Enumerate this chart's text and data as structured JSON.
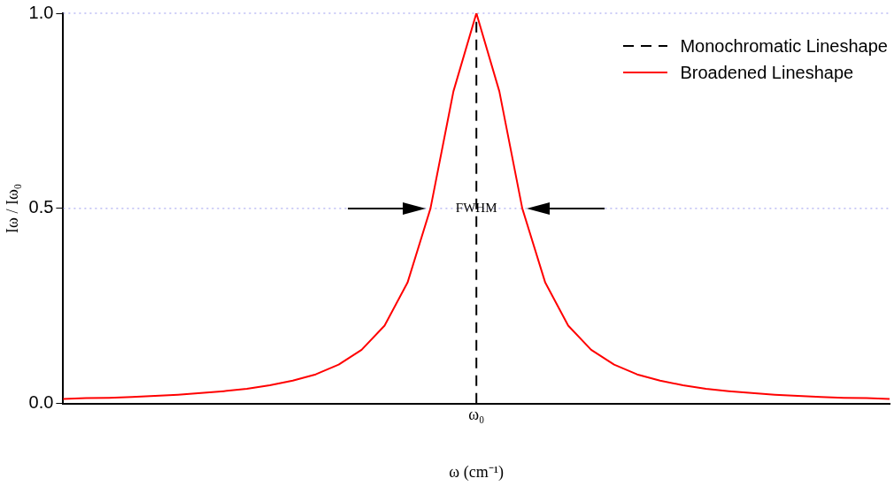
{
  "chart_data": {
    "type": "line",
    "xlabel": "ω (cm⁻¹)",
    "ylabel": "Iω / Iω₀",
    "categories": [
      null,
      null,
      null,
      null,
      null,
      null,
      null,
      null,
      null,
      null,
      null,
      null,
      null,
      null,
      null,
      null,
      null,
      null,
      "ω₀",
      null,
      null,
      null,
      null,
      null,
      null,
      null,
      null,
      null,
      null,
      null,
      null,
      null,
      null,
      null,
      null,
      null,
      null
    ],
    "ylim": [
      0,
      1
    ],
    "yticks": [
      {
        "value": 0,
        "label": "0.0"
      },
      {
        "value": 0.5,
        "label": "0.5"
      },
      {
        "value": 1,
        "label": "1.0"
      }
    ],
    "legend": "top right",
    "marker": "none",
    "annotations": [
      {
        "text": "FWHM",
        "x": "ω₀",
        "y": 0.5
      }
    ],
    "ref_lines": [
      {
        "axis": "x",
        "value": "ω₀",
        "label": "Monochromatic Lineshape",
        "color": "#000000",
        "line_style": "dashed"
      },
      {
        "axis": "y",
        "value": 0.5,
        "color": "#9999ee",
        "line_style": "dotted"
      },
      {
        "axis": "y",
        "value": 1,
        "color": "#9999ee",
        "line_style": "dotted"
      }
    ],
    "series": [
      {
        "name": "Broadened Lineshape",
        "color": "#ff0000",
        "line_style": "solid",
        "values": [
          0.012,
          0.014,
          0.015,
          0.017,
          0.02,
          0.023,
          0.027,
          0.032,
          0.038,
          0.047,
          0.059,
          0.075,
          0.1,
          0.138,
          0.2,
          0.31,
          0.5,
          0.8,
          1,
          0.8,
          0.5,
          0.31,
          0.2,
          0.138,
          0.1,
          0.075,
          0.059,
          0.047,
          0.038,
          0.032,
          0.027,
          0.023,
          0.02,
          0.017,
          0.015,
          0.014,
          0.012
        ]
      }
    ]
  }
}
